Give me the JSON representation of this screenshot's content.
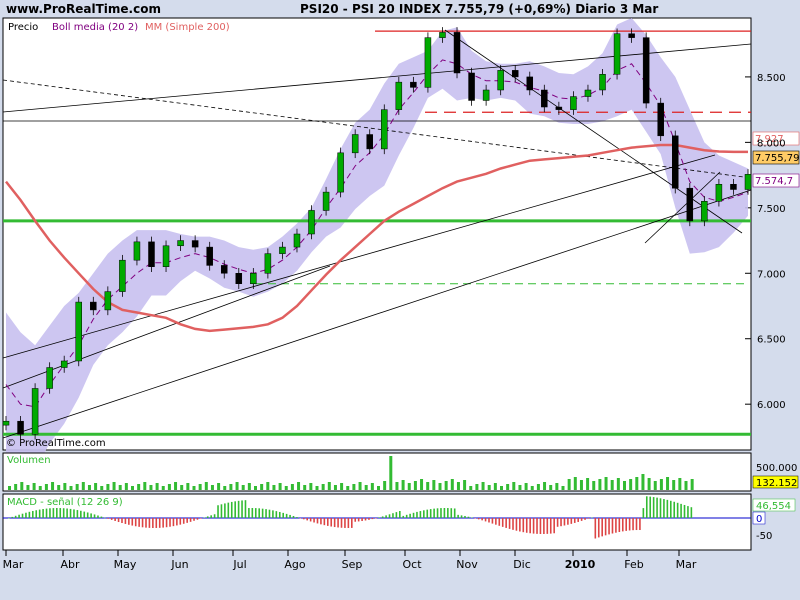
{
  "header": {
    "site": "www.ProRealTime.com",
    "title": "PSI20 - PSI 20 INDEX   7.755,79 (+0,69%)   Diario  3 Mar"
  },
  "legend": {
    "precio": "Precio",
    "boll": "Boll media (20 2)",
    "mm": "MM (Simple 200)"
  },
  "watermark": "© ProRealTime.com",
  "colors": {
    "background": "#d4dcec",
    "plot_bg": "#ffffff",
    "bollinger_fill": "#c8c0f0",
    "bollinger_mid": "#800080",
    "ma200": "#e06060",
    "support": "#33bb33",
    "resistance": "#dd2222",
    "candle_up": "#00aa00",
    "candle_down": "#000000",
    "volume": "#33bb33",
    "macd_pos": "#33bb33",
    "macd_neg": "#dd4444",
    "signal": "#0000cc"
  },
  "chart_data": [
    {
      "type": "line",
      "title": "PSI20 - PSI 20 INDEX",
      "series_name": "Precio",
      "x_ticks": [
        "Mar",
        "Abr",
        "May",
        "Jun",
        "Jul",
        "Ago",
        "Sep",
        "Oct",
        "Nov",
        "Dic",
        "2010",
        "Feb",
        "Mar"
      ],
      "y_ticks": [
        "6.000",
        "6.500",
        "7.000",
        "7.500",
        "8.000",
        "8.500"
      ],
      "ylim": [
        5650,
        8950
      ],
      "close": [
        5870,
        5770,
        6120,
        6280,
        6330,
        6780,
        6720,
        6860,
        7100,
        7240,
        7050,
        7210,
        7250,
        7200,
        7060,
        7000,
        6920,
        7000,
        7150,
        7200,
        7300,
        7480,
        7620,
        7920,
        8060,
        7950,
        8250,
        8460,
        8420,
        8800,
        8840,
        8530,
        8320,
        8400,
        8550,
        8500,
        8400,
        8270,
        8250,
        8350,
        8400,
        8520,
        8830,
        8800,
        8300,
        8050,
        7650,
        7400,
        7550,
        7680,
        7640,
        7755.79
      ],
      "bollinger_mid": [
        6150,
        6000,
        5980,
        6150,
        6300,
        6450,
        6650,
        6800,
        6900,
        7000,
        7080,
        7080,
        7120,
        7150,
        7120,
        7070,
        7030,
        7000,
        7030,
        7100,
        7200,
        7330,
        7500,
        7650,
        7820,
        7920,
        8060,
        8250,
        8380,
        8520,
        8630,
        8600,
        8520,
        8470,
        8470,
        8460,
        8420,
        8390,
        8340,
        8330,
        8360,
        8420,
        8550,
        8600,
        8450,
        8280,
        8000,
        7700,
        7580,
        7550,
        7580,
        7620
      ],
      "bollinger_upper": [
        6700,
        6550,
        6450,
        6600,
        6750,
        6850,
        7000,
        7150,
        7250,
        7330,
        7330,
        7330,
        7300,
        7280,
        7280,
        7250,
        7200,
        7180,
        7200,
        7280,
        7380,
        7500,
        7720,
        7950,
        8150,
        8250,
        8450,
        8600,
        8650,
        8700,
        8850,
        8880,
        8700,
        8620,
        8600,
        8600,
        8620,
        8580,
        8530,
        8520,
        8580,
        8680,
        8900,
        8950,
        8820,
        8650,
        8500,
        8250,
        8000,
        7900,
        7850,
        7800
      ],
      "bollinger_lower": [
        5600,
        5500,
        5500,
        5700,
        5850,
        6050,
        6300,
        6450,
        6550,
        6670,
        6830,
        6830,
        6940,
        7020,
        6960,
        6890,
        6860,
        6820,
        6860,
        6920,
        7020,
        7160,
        7280,
        7350,
        7490,
        7590,
        7670,
        7900,
        8110,
        8340,
        8410,
        8320,
        8340,
        8320,
        8340,
        8320,
        8220,
        8200,
        8150,
        8140,
        8140,
        8160,
        8200,
        8250,
        8080,
        7910,
        7500,
        7150,
        7160,
        7200,
        7310,
        7440
      ],
      "ma200": [
        7700,
        7560,
        7400,
        7250,
        7120,
        7000,
        6880,
        6780,
        6720,
        6700,
        6680,
        6660,
        6610,
        6575,
        6560,
        6570,
        6580,
        6590,
        6610,
        6660,
        6750,
        6870,
        6990,
        7100,
        7200,
        7300,
        7400,
        7470,
        7530,
        7590,
        7650,
        7700,
        7730,
        7760,
        7800,
        7830,
        7860,
        7870,
        7880,
        7890,
        7900,
        7920,
        7940,
        7960,
        7970,
        7980,
        7980,
        7960,
        7940,
        7930,
        7927,
        7927
      ],
      "levels": {
        "support_upper": 7400,
        "support_lower": 5770,
        "support_dashed": 6920,
        "resistance_top": 8850,
        "resistance_dashed": 8230
      },
      "price_labels": [
        "7.927",
        "7.755,79",
        "7.574,7"
      ]
    },
    {
      "type": "bar",
      "title": "Volumen",
      "y_ticks": [
        "500.000"
      ],
      "last_value": "132.152"
    },
    {
      "type": "bar",
      "title": "MACD - señal (12 26 9)",
      "y_ticks": [
        "0",
        "-50"
      ],
      "last_value": "46,554",
      "signal_label": "0"
    }
  ]
}
